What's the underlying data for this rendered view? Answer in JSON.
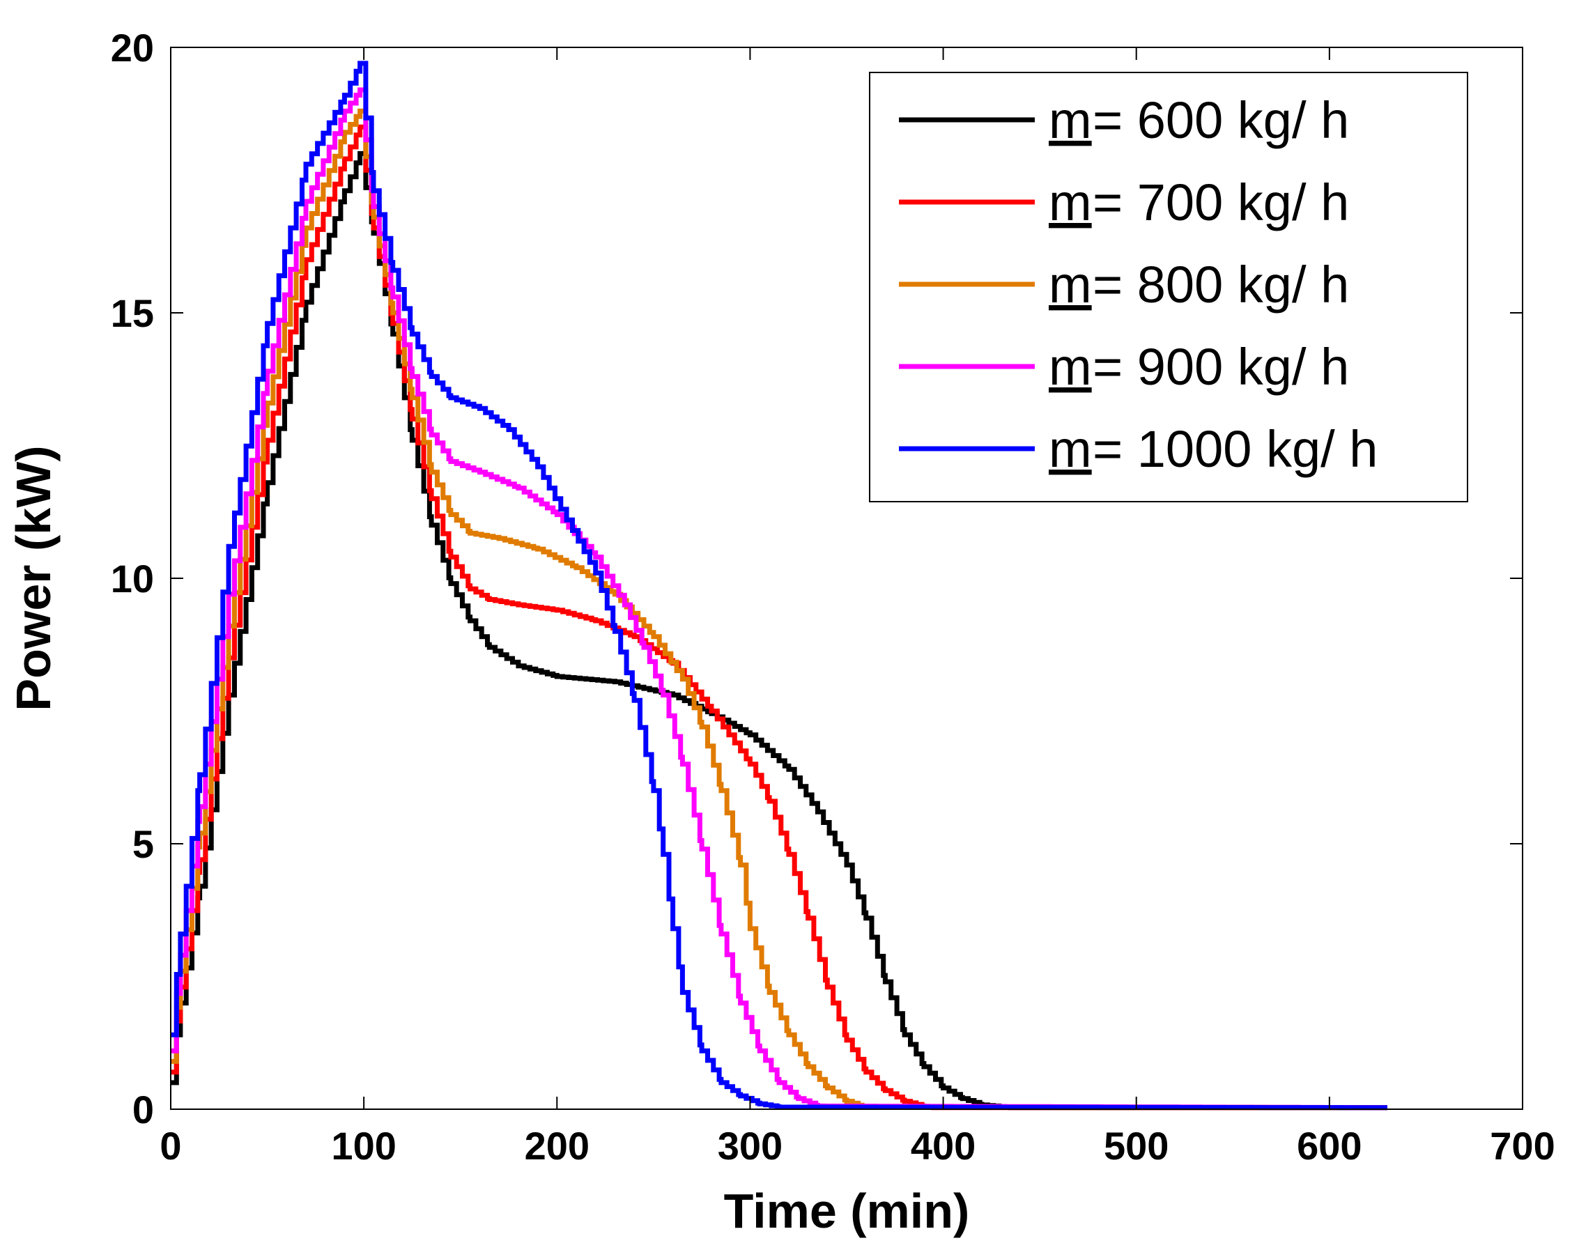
{
  "chart_data": {
    "type": "line",
    "xlabel": "Time (min)",
    "ylabel": "Power (kW)",
    "xlim": [
      0,
      700
    ],
    "ylim": [
      0,
      20
    ],
    "xticks": [
      0,
      100,
      200,
      300,
      400,
      500,
      600,
      700
    ],
    "yticks": [
      0,
      5,
      10,
      15,
      20
    ],
    "grid": false,
    "legend_position": "top-right",
    "legend_prefix": "m",
    "series": [
      {
        "name": "= 600 kg/ h",
        "color": "#000000",
        "points": [
          [
            0,
            0.5
          ],
          [
            5,
            2.0
          ],
          [
            15,
            4.2
          ],
          [
            30,
            7.8
          ],
          [
            50,
            11.8
          ],
          [
            70,
            15.2
          ],
          [
            90,
            17.3
          ],
          [
            98,
            18.0
          ],
          [
            105,
            16.5
          ],
          [
            115,
            14.6
          ],
          [
            125,
            12.6
          ],
          [
            135,
            11.0
          ],
          [
            145,
            9.9
          ],
          [
            155,
            9.2
          ],
          [
            165,
            8.7
          ],
          [
            180,
            8.35
          ],
          [
            200,
            8.15
          ],
          [
            230,
            8.05
          ],
          [
            260,
            7.8
          ],
          [
            280,
            7.45
          ],
          [
            300,
            7.05
          ],
          [
            320,
            6.4
          ],
          [
            335,
            5.6
          ],
          [
            350,
            4.6
          ],
          [
            360,
            3.6
          ],
          [
            370,
            2.4
          ],
          [
            380,
            1.4
          ],
          [
            390,
            0.8
          ],
          [
            400,
            0.4
          ],
          [
            410,
            0.2
          ],
          [
            420,
            0.08
          ],
          [
            435,
            0.03
          ],
          [
            630,
            0.03
          ]
        ]
      },
      {
        "name": "= 700 kg/ h",
        "color": "#ff0000",
        "points": [
          [
            0,
            0.7
          ],
          [
            5,
            2.3
          ],
          [
            15,
            4.7
          ],
          [
            30,
            8.5
          ],
          [
            50,
            12.6
          ],
          [
            70,
            16.0
          ],
          [
            90,
            17.9
          ],
          [
            98,
            18.5
          ],
          [
            105,
            16.6
          ],
          [
            115,
            14.8
          ],
          [
            125,
            13.0
          ],
          [
            135,
            11.5
          ],
          [
            145,
            10.4
          ],
          [
            155,
            9.8
          ],
          [
            165,
            9.6
          ],
          [
            180,
            9.5
          ],
          [
            200,
            9.4
          ],
          [
            220,
            9.2
          ],
          [
            240,
            8.9
          ],
          [
            260,
            8.4
          ],
          [
            280,
            7.5
          ],
          [
            300,
            6.5
          ],
          [
            310,
            5.8
          ],
          [
            320,
            4.8
          ],
          [
            330,
            3.6
          ],
          [
            340,
            2.3
          ],
          [
            350,
            1.3
          ],
          [
            360,
            0.7
          ],
          [
            370,
            0.35
          ],
          [
            380,
            0.15
          ],
          [
            390,
            0.05
          ],
          [
            395,
            0.03
          ],
          [
            630,
            0.03
          ]
        ]
      },
      {
        "name": "= 800 kg/ h",
        "color": "#e07b00",
        "points": [
          [
            0,
            0.9
          ],
          [
            5,
            2.6
          ],
          [
            15,
            5.2
          ],
          [
            30,
            9.1
          ],
          [
            50,
            13.3
          ],
          [
            70,
            16.6
          ],
          [
            90,
            18.4
          ],
          [
            98,
            18.8
          ],
          [
            105,
            16.8
          ],
          [
            115,
            15.0
          ],
          [
            125,
            13.4
          ],
          [
            135,
            12.0
          ],
          [
            145,
            11.2
          ],
          [
            155,
            10.85
          ],
          [
            170,
            10.75
          ],
          [
            190,
            10.55
          ],
          [
            210,
            10.2
          ],
          [
            230,
            9.7
          ],
          [
            250,
            8.9
          ],
          [
            265,
            8.1
          ],
          [
            275,
            7.2
          ],
          [
            285,
            6.0
          ],
          [
            295,
            4.6
          ],
          [
            300,
            3.4
          ],
          [
            310,
            2.2
          ],
          [
            320,
            1.4
          ],
          [
            330,
            0.8
          ],
          [
            340,
            0.4
          ],
          [
            350,
            0.15
          ],
          [
            358,
            0.05
          ],
          [
            630,
            0.03
          ]
        ]
      },
      {
        "name": "= 900 kg/ h",
        "color": "#ff00ff",
        "points": [
          [
            0,
            1.1
          ],
          [
            5,
            2.9
          ],
          [
            15,
            5.7
          ],
          [
            30,
            9.7
          ],
          [
            50,
            13.9
          ],
          [
            70,
            17.1
          ],
          [
            90,
            18.8
          ],
          [
            98,
            19.2
          ],
          [
            105,
            17.0
          ],
          [
            115,
            15.3
          ],
          [
            125,
            13.8
          ],
          [
            135,
            12.7
          ],
          [
            145,
            12.2
          ],
          [
            160,
            12.0
          ],
          [
            180,
            11.7
          ],
          [
            200,
            11.2
          ],
          [
            220,
            10.4
          ],
          [
            235,
            9.5
          ],
          [
            245,
            8.7
          ],
          [
            255,
            7.8
          ],
          [
            265,
            6.5
          ],
          [
            275,
            4.9
          ],
          [
            285,
            3.3
          ],
          [
            295,
            2.0
          ],
          [
            305,
            1.1
          ],
          [
            315,
            0.5
          ],
          [
            325,
            0.2
          ],
          [
            335,
            0.06
          ],
          [
            630,
            0.03
          ]
        ]
      },
      {
        "name": "= 1000 kg/ h",
        "color": "#0000ff",
        "points": [
          [
            0,
            1.4
          ],
          [
            5,
            3.3
          ],
          [
            15,
            6.3
          ],
          [
            30,
            10.6
          ],
          [
            50,
            14.8
          ],
          [
            70,
            17.8
          ],
          [
            90,
            19.1
          ],
          [
            98,
            19.7
          ],
          [
            105,
            17.3
          ],
          [
            115,
            15.8
          ],
          [
            125,
            14.6
          ],
          [
            135,
            13.8
          ],
          [
            145,
            13.4
          ],
          [
            160,
            13.2
          ],
          [
            175,
            12.8
          ],
          [
            190,
            12.1
          ],
          [
            205,
            11.1
          ],
          [
            220,
            10.1
          ],
          [
            230,
            9.0
          ],
          [
            240,
            7.7
          ],
          [
            250,
            6.0
          ],
          [
            255,
            4.8
          ],
          [
            260,
            3.4
          ],
          [
            265,
            2.2
          ],
          [
            275,
            1.1
          ],
          [
            285,
            0.5
          ],
          [
            295,
            0.25
          ],
          [
            305,
            0.1
          ],
          [
            315,
            0.04
          ],
          [
            630,
            0.03
          ]
        ]
      }
    ]
  }
}
